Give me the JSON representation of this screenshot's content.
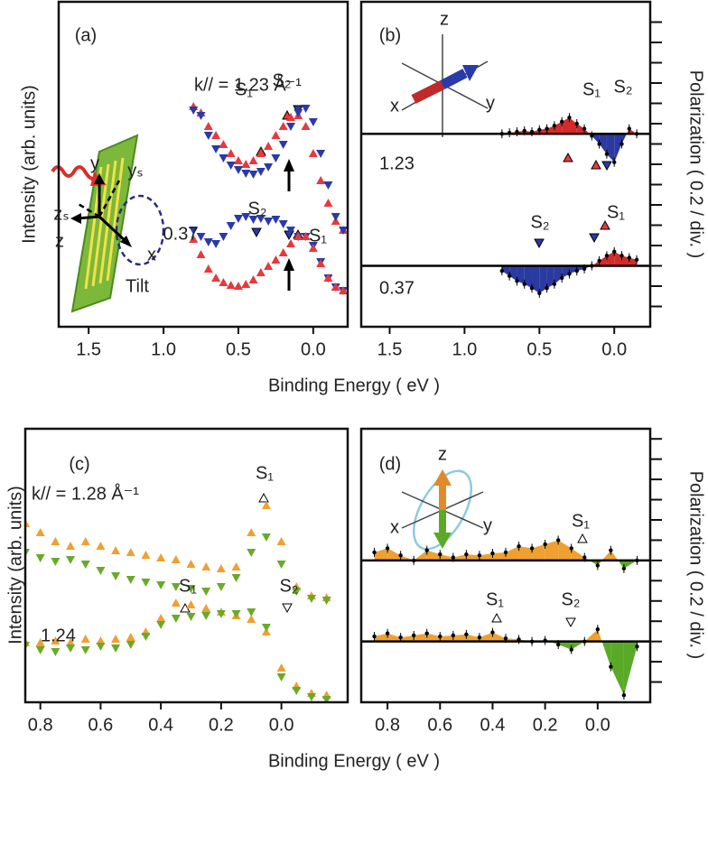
{
  "chart_data": [
    {
      "type": "scatter",
      "title": "(a)",
      "x_label": "Binding Energy ( eV )",
      "y_label": "Intensity (arb. units)",
      "xlim": [
        1.7,
        -0.23
      ],
      "xticks": [
        1.5,
        {
          "value": 1,
          "label": "1.0"
        },
        0.5,
        {
          "value": 0,
          "label": "0.0"
        }
      ],
      "ylim": [
        0,
        36
      ],
      "x": [
        0.8,
        0.75,
        0.7,
        0.65,
        0.6,
        0.55,
        0.5,
        0.45,
        0.4,
        0.35,
        0.3,
        0.25,
        0.2,
        0.15,
        0.1,
        0.05,
        0,
        -0.05,
        -0.1,
        -0.15,
        -0.2
      ],
      "series": [
        {
          "color": "#e8383d",
          "marker": "triangle-up",
          "values": [
            24.4,
            23.7,
            22.2,
            21.2,
            20.2,
            19.2,
            18.4,
            18.0,
            18.4,
            19.2,
            20.0,
            21.2,
            22.2,
            23.2,
            23.4,
            22.2,
            19.2,
            16.2,
            13.7,
            11.7,
            10.7
          ]
        },
        {
          "color": "#2b3aa8",
          "marker": "triangle-down",
          "values": [
            24.0,
            23.4,
            21.2,
            19.7,
            18.7,
            17.9,
            17.4,
            17.0,
            16.9,
            17.2,
            17.7,
            18.7,
            20.2,
            22.2,
            23.7,
            24.2,
            22.7,
            19.2,
            15.7,
            12.2,
            10.7
          ]
        },
        {
          "color": "#2b3aa8",
          "marker": "triangle-down",
          "values": [
            10.7,
            10.0,
            9.4,
            9.2,
            10.0,
            11.2,
            12.0,
            12.2,
            11.9,
            12.0,
            11.7,
            11.9,
            11.4,
            10.7,
            10.0,
            10.0,
            9.0,
            7.2,
            5.4,
            4.4,
            4.0
          ]
        },
        {
          "color": "#e8383d",
          "marker": "triangle-up",
          "values": [
            9.7,
            8.0,
            6.4,
            5.4,
            4.9,
            4.6,
            4.5,
            4.7,
            5.2,
            6.0,
            6.7,
            7.4,
            8.2,
            9.2,
            10.0,
            10.0,
            8.7,
            7.0,
            5.4,
            4.4,
            4.0
          ]
        }
      ],
      "annotations": [
        "k// = 1.23 Å⁻¹",
        "S₁",
        "S₂",
        "0.37",
        "S₂",
        "S₁",
        "y",
        "yₛ",
        "zₛ",
        "z",
        "x",
        "Tilt"
      ]
    },
    {
      "type": "area",
      "title": "(b)",
      "y_label": "Polarization ( 0.2 / div. )",
      "xlim": [
        1.69,
        -0.24
      ],
      "xticks": [
        1.5,
        {
          "value": 1,
          "label": "1.0"
        },
        0.5,
        {
          "value": 0,
          "label": "0.0"
        }
      ],
      "ylim": [
        -0.6,
        2.6
      ],
      "yticks": [
        -0.4,
        -0.2,
        0,
        0.2,
        0.4,
        0.6,
        0.8,
        1.0,
        1.2,
        1.4,
        1.6,
        1.8,
        2.0,
        2.2,
        2.4
      ],
      "x": [
        0.75,
        0.7,
        0.65,
        0.6,
        0.55,
        0.5,
        0.45,
        0.4,
        0.35,
        0.3,
        0.25,
        0.2,
        0.15,
        0.1,
        0.05,
        0,
        -0.05,
        -0.1,
        -0.15
      ],
      "series": [
        {
          "color": "#d42a2a",
          "negative_color": "#2a3aa0",
          "baseline": 1.3,
          "values": [
            1.3,
            1.31,
            1.32,
            1.33,
            1.32,
            1.34,
            1.35,
            1.38,
            1.42,
            1.46,
            1.4,
            1.35,
            1.28,
            1.2,
            1.1,
            1.02,
            1.2,
            1.35,
            1.3
          ]
        },
        {
          "color": "#d42a2a",
          "negative_color": "#2a3aa0",
          "baseline": 0,
          "values": [
            -0.05,
            -0.1,
            -0.15,
            -0.18,
            -0.22,
            -0.27,
            -0.22,
            -0.18,
            -0.12,
            -0.08,
            -0.05,
            -0.03,
            0,
            0.05,
            0.1,
            0.14,
            0.1,
            0.08,
            0.06
          ]
        }
      ],
      "annotations": [
        "S₁",
        "S₂",
        "1.23",
        "S₂",
        "S₁",
        "0.37",
        "z",
        "x",
        "y"
      ]
    },
    {
      "type": "scatter",
      "title": "(c)",
      "x_label": "Binding Energy ( eV )",
      "y_label": "Intensity (arb. units)",
      "xlim": [
        0.85,
        -0.22
      ],
      "xticks": [
        0.8,
        0.6,
        0.4,
        0.2,
        {
          "value": 0,
          "label": "0.0"
        }
      ],
      "ylim": [
        0,
        30.3
      ],
      "x": [
        0.85,
        0.8,
        0.75,
        0.7,
        0.65,
        0.6,
        0.55,
        0.5,
        0.45,
        0.4,
        0.35,
        0.3,
        0.25,
        0.2,
        0.15,
        0.1,
        0.05,
        0,
        -0.05,
        -0.1,
        -0.15
      ],
      "series": [
        {
          "color": "#f0a030",
          "marker": "triangle-up",
          "values": [
            19.8,
            18.8,
            17.8,
            17.3,
            17.8,
            17.3,
            16.8,
            16.6,
            16.3,
            16.0,
            15.8,
            15.3,
            15.0,
            14.8,
            15.0,
            18.8,
            21.8,
            17.8,
            12.8,
            11.8,
            11.6
          ]
        },
        {
          "color": "#6aaa2a",
          "marker": "triangle-down",
          "values": [
            16.6,
            16.0,
            15.6,
            15.8,
            15.3,
            14.6,
            14.0,
            13.6,
            13.3,
            13.0,
            12.8,
            12.6,
            12.3,
            12.8,
            13.8,
            16.6,
            18.3,
            15.3,
            12.3,
            11.5,
            11.3
          ]
        },
        {
          "color": "#f0a030",
          "marker": "triangle-up",
          "values": [
            6.6,
            6.6,
            6.8,
            6.6,
            7.0,
            6.8,
            7.0,
            7.2,
            7.8,
            9.3,
            11.0,
            10.8,
            10.4,
            10.0,
            9.6,
            9.2,
            7.8,
            3.8,
            1.8,
            1.0,
            0.8
          ]
        },
        {
          "color": "#6aaa2a",
          "marker": "triangle-down",
          "values": [
            6.3,
            5.8,
            5.6,
            6.0,
            5.8,
            6.2,
            6.0,
            6.4,
            7.3,
            8.6,
            9.3,
            9.5,
            9.6,
            9.8,
            9.8,
            10.0,
            8.3,
            2.8,
            1.3,
            0.6,
            0.3
          ]
        }
      ],
      "annotations": [
        "k// = 1.28 Å⁻¹",
        "S₁",
        "S₁",
        "S₂",
        "1.24"
      ]
    },
    {
      "type": "area",
      "title": "(d)",
      "y_label": "Polarization ( 0.2 / div. )",
      "xlim": [
        0.9,
        -0.2
      ],
      "xticks": [
        0.8,
        0.6,
        0.4,
        0.2,
        {
          "value": 0,
          "label": "0.0"
        }
      ],
      "ylim": [
        -0.6,
        2.1
      ],
      "yticks": [
        -0.4,
        -0.2,
        0,
        0.2,
        0.4,
        0.6,
        0.8,
        1.0,
        1.2,
        1.4,
        1.6,
        1.8,
        2.0
      ],
      "x": [
        0.85,
        0.8,
        0.75,
        0.7,
        0.65,
        0.6,
        0.55,
        0.5,
        0.45,
        0.4,
        0.35,
        0.3,
        0.25,
        0.2,
        0.15,
        0.1,
        0.05,
        0,
        -0.05,
        -0.1,
        -0.15
      ],
      "series": [
        {
          "color": "#f0a030",
          "negative_color": "#5aaa28",
          "baseline": 0.8,
          "values": [
            0.88,
            0.92,
            0.85,
            0.8,
            0.9,
            0.86,
            0.83,
            0.86,
            0.85,
            0.87,
            0.88,
            0.94,
            0.92,
            0.96,
            1.0,
            0.92,
            0.83,
            0.75,
            0.9,
            0.72,
            0.8
          ]
        },
        {
          "color": "#f0a030",
          "negative_color": "#5aaa28",
          "baseline": 0,
          "values": [
            0.05,
            0.08,
            0.04,
            0.06,
            0.08,
            0.05,
            0.06,
            0.07,
            0.04,
            0.09,
            0.03,
            0.02,
            0,
            0.01,
            -0.03,
            -0.08,
            0,
            0.12,
            -0.25,
            -0.53,
            -0.05
          ]
        }
      ],
      "annotations": [
        "z",
        "x",
        "y",
        "S₁",
        "S₁",
        "S₂"
      ]
    }
  ]
}
